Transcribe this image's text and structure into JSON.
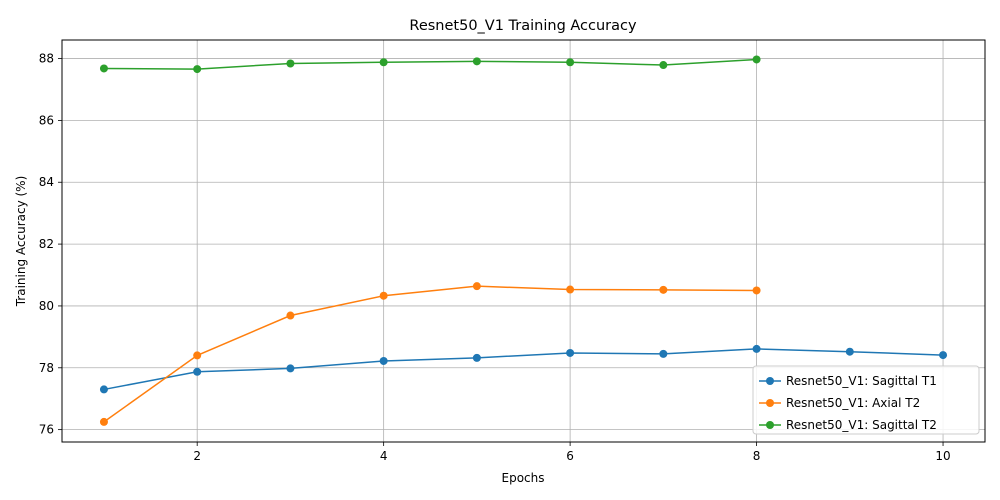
{
  "chart_data": {
    "type": "line",
    "title": "Resnet50_V1 Training Accuracy",
    "xlabel": "Epochs",
    "ylabel": "Training Accuracy (%)",
    "xlim": [
      0.55,
      10.45
    ],
    "ylim": [
      75.6,
      88.6
    ],
    "xticks": [
      2,
      4,
      6,
      8,
      10
    ],
    "yticks": [
      76,
      78,
      80,
      82,
      84,
      86,
      88
    ],
    "grid": true,
    "legend_position": "lower-right",
    "series": [
      {
        "name": "Resnet50_V1: Sagittal T1",
        "color": "#1f77b4",
        "x": [
          1,
          2,
          3,
          4,
          5,
          6,
          7,
          8,
          9,
          10
        ],
        "values": [
          77.3,
          77.87,
          77.98,
          78.22,
          78.32,
          78.48,
          78.45,
          78.61,
          78.52,
          78.41
        ]
      },
      {
        "name": "Resnet50_V1: Axial T2",
        "color": "#ff7f0e",
        "x": [
          1,
          2,
          3,
          4,
          5,
          6,
          7,
          8
        ],
        "values": [
          76.25,
          78.4,
          79.69,
          80.33,
          80.64,
          80.53,
          80.52,
          80.5
        ]
      },
      {
        "name": "Resnet50_V1: Sagittal T2",
        "color": "#2ca02c",
        "x": [
          1,
          2,
          3,
          4,
          5,
          6,
          7,
          8
        ],
        "values": [
          87.68,
          87.66,
          87.84,
          87.88,
          87.91,
          87.88,
          87.79,
          87.97
        ]
      }
    ]
  }
}
